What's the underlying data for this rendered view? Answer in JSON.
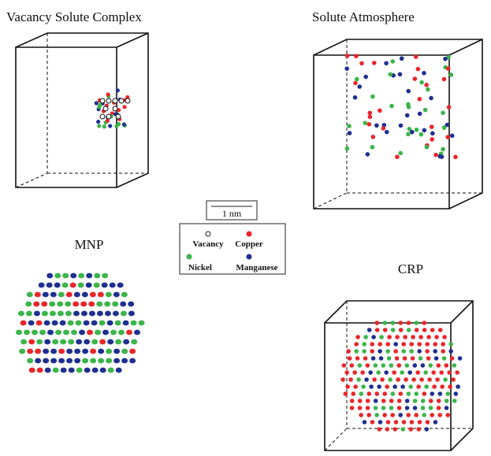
{
  "panels": [
    {
      "title": "Vacancy Solute Complex"
    },
    {
      "title": "Solute Atmosphere"
    },
    {
      "title": "MNP"
    },
    {
      "title": "CRP"
    }
  ],
  "scale_bar": {
    "label": "1 nm"
  },
  "legend": {
    "items": [
      "Vacancy",
      "Copper",
      "Nickel",
      "Manganese"
    ]
  }
}
